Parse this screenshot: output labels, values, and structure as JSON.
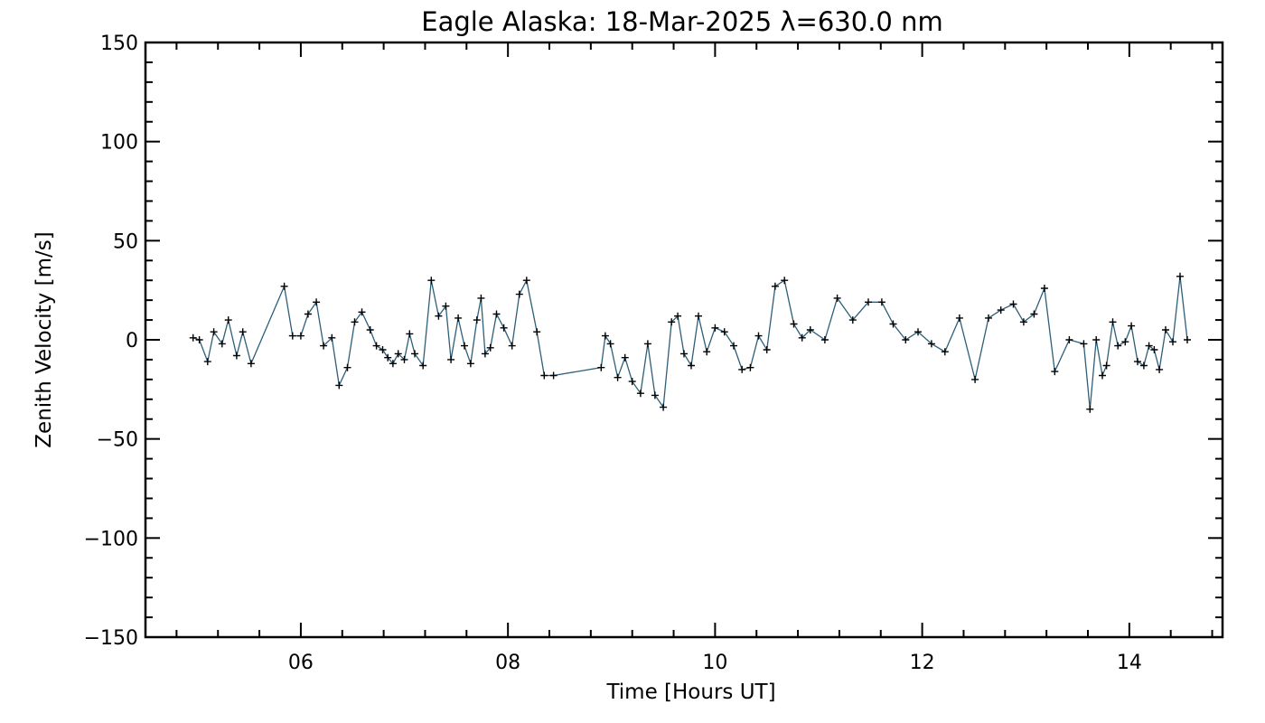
{
  "chart_data": {
    "type": "line",
    "title": "Eagle Alaska: 18-Mar-2025 λ=630.0 nm",
    "xlabel": "Time [Hours UT]",
    "ylabel": "Zenith Velocity [m/s]",
    "xlim": [
      4.5,
      14.9
    ],
    "ylim": [
      -150,
      150
    ],
    "x_ticks": [
      6,
      8,
      10,
      12,
      14
    ],
    "x_tick_labels": [
      "06",
      "08",
      "10",
      "12",
      "14"
    ],
    "y_ticks": [
      -150,
      -100,
      -50,
      0,
      50,
      100,
      150
    ],
    "y_tick_labels": [
      "−150",
      "−100",
      "−50",
      "0",
      "50",
      "100",
      "150"
    ],
    "x_minor_step": 0.4,
    "y_minor_step": 10,
    "grid": false,
    "line_color": "#2d5f78",
    "marker": "plus",
    "marker_color": "#000000",
    "series": [
      {
        "x": [
          4.96,
          5.02,
          5.1,
          5.16,
          5.24,
          5.3,
          5.38,
          5.44,
          5.52,
          5.84,
          5.92,
          6.0,
          6.07,
          6.15,
          6.22,
          6.3,
          6.37,
          6.45,
          6.52,
          6.59,
          6.67,
          6.73,
          6.79,
          6.84,
          6.89,
          6.94,
          7.0,
          7.05,
          7.1,
          7.18,
          7.26,
          7.33,
          7.4,
          7.45,
          7.52,
          7.58,
          7.64,
          7.7,
          7.74,
          7.78,
          7.83,
          7.89,
          7.96,
          8.04,
          8.11,
          8.18,
          8.28,
          8.35,
          8.44,
          8.9,
          8.94,
          8.99,
          9.06,
          9.13,
          9.2,
          9.28,
          9.35,
          9.42,
          9.5,
          9.58,
          9.64,
          9.7,
          9.77,
          9.84,
          9.92,
          10.0,
          10.09,
          10.18,
          10.26,
          10.34,
          10.42,
          10.5,
          10.58,
          10.67,
          10.76,
          10.84,
          10.92,
          11.06,
          11.18,
          11.33,
          11.48,
          11.61,
          11.72,
          11.84,
          11.96,
          12.09,
          12.22,
          12.36,
          12.51,
          12.64,
          12.76,
          12.88,
          12.98,
          13.08,
          13.18,
          13.28,
          13.42,
          13.56,
          13.62,
          13.68,
          13.74,
          13.78,
          13.84,
          13.89,
          13.96,
          14.02,
          14.08,
          14.14,
          14.19,
          14.24,
          14.29,
          14.35,
          14.42,
          14.49,
          14.56
        ],
        "y": [
          1,
          0,
          -11,
          4,
          -2,
          10,
          -8,
          4,
          -12,
          27,
          2,
          2,
          13,
          19,
          -3,
          1,
          -23,
          -14,
          9,
          14,
          5,
          -3,
          -5,
          -9,
          -12,
          -7,
          -10,
          3,
          -7,
          -13,
          30,
          12,
          17,
          -10,
          11,
          -3,
          -12,
          10,
          21,
          -7,
          -4,
          13,
          6,
          -3,
          23,
          30,
          4,
          -18,
          -18,
          -14,
          2,
          -2,
          -19,
          -9,
          -21,
          -27,
          -2,
          -28,
          -34,
          9,
          12,
          -7,
          -13,
          12,
          -6,
          6,
          4,
          -3,
          -15,
          -14,
          2,
          -5,
          27,
          30,
          8,
          1,
          5,
          0,
          21,
          10,
          19,
          19,
          8,
          0,
          4,
          -2,
          -6,
          11,
          -20,
          11,
          15,
          18,
          9,
          13,
          26,
          -16,
          0,
          -2,
          -35,
          0,
          -18,
          -13,
          9,
          -3,
          -1,
          7,
          -11,
          -13,
          -3,
          -5,
          -15,
          5,
          -1,
          32,
          0
        ]
      }
    ]
  }
}
